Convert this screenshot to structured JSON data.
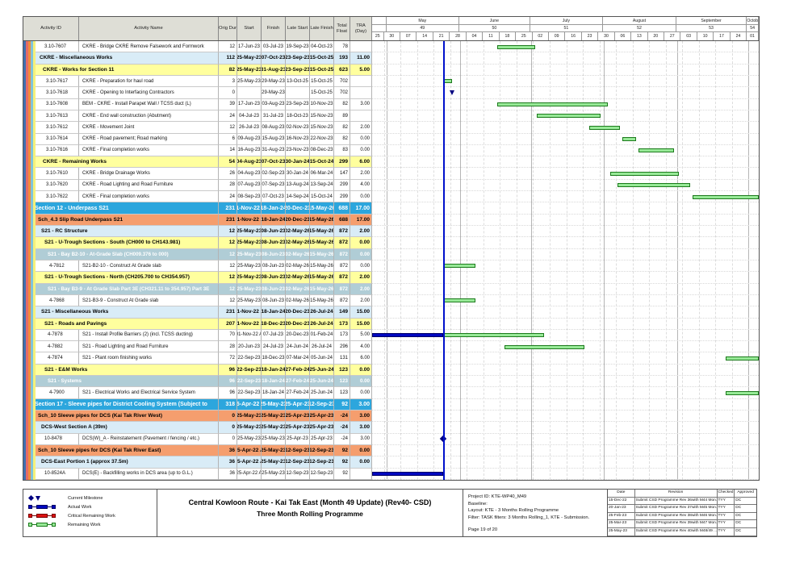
{
  "chart_data": {
    "type": "table",
    "title": "Central Kowloon Route - Kai Tak East (Month 49 Update) (Rev40- CSD) — Three Month Rolling Programme",
    "columns": [
      "Activity ID",
      "Activity Name",
      "Orig Dur",
      "Start",
      "Finish",
      "Late Start",
      "Late Finish",
      "Total Float",
      "TRA (Day)"
    ],
    "timeline": {
      "window_start": "25-Apr-23",
      "window_end": "06-Oct-23",
      "data_date": "25-May-23",
      "months": [
        {
          "l": "",
          "n": "",
          "d": 6
        },
        {
          "l": "May",
          "n": "49",
          "d": 31
        },
        {
          "l": "June",
          "n": "50",
          "d": 30
        },
        {
          "l": "July",
          "n": "51",
          "d": 31
        },
        {
          "l": "August",
          "n": "52",
          "d": 31
        },
        {
          "l": "September",
          "n": "53",
          "d": 30
        },
        {
          "l": "October",
          "n": "54",
          "d": 5
        }
      ],
      "weeks": [
        {
          "l": "25",
          "d": 5
        },
        {
          "l": "30",
          "d": 7
        },
        {
          "l": "07",
          "d": 7
        },
        {
          "l": "14",
          "d": 7
        },
        {
          "l": "21",
          "d": 7
        },
        {
          "l": "28",
          "d": 7
        },
        {
          "l": "04",
          "d": 7
        },
        {
          "l": "11",
          "d": 7
        },
        {
          "l": "18",
          "d": 7
        },
        {
          "l": "25",
          "d": 7
        },
        {
          "l": "02",
          "d": 7
        },
        {
          "l": "09",
          "d": 7
        },
        {
          "l": "16",
          "d": 7
        },
        {
          "l": "23",
          "d": 7
        },
        {
          "l": "30",
          "d": 7
        },
        {
          "l": "06",
          "d": 7
        },
        {
          "l": "13",
          "d": 7
        },
        {
          "l": "20",
          "d": 7
        },
        {
          "l": "27",
          "d": 7
        },
        {
          "l": "03",
          "d": 7
        },
        {
          "l": "10",
          "d": 7
        },
        {
          "l": "17",
          "d": 7
        },
        {
          "l": "24",
          "d": 7
        },
        {
          "l": "01",
          "d": 5
        }
      ]
    },
    "colors": {
      "section_bg": "#2ca6dd",
      "orange_bg": "#f59e6e",
      "lightblue_bg": "#d9ecf7",
      "yellow_bg": "#ffff9e",
      "teal_bg": "#b0cdd6",
      "actual_bar": "#0008c0",
      "remaining_fill": "#97e997",
      "remaining_border": "#1c7a1c",
      "critical_bar": "#dd1111",
      "data_date_line": "#0011cc",
      "band_stripes": [
        "#3e6fb0",
        "#e36a6a",
        "#f08c3c",
        "#7fc4dc",
        "#f5f07a"
      ]
    },
    "rows": [
      {
        "t": "act",
        "ind": 26,
        "id": "3.10-7607",
        "nm": "CKRE - Bridge CKRE Remove Falsework and Formwork",
        "du": "12",
        "st": "17-Jun-23",
        "fi": "03-Jul-23",
        "ls": "19-Sep-23",
        "lf": "04-Oct-23",
        "tf": "78",
        "tra": ""
      },
      {
        "t": "blu",
        "ind": 20,
        "id": "",
        "nm": "CKRE - Miscellaneous Works",
        "du": "112",
        "st": "25-May-23",
        "fi": "07-Oct-23",
        "ls": "23-Sep-23",
        "lf": "15-Oct-25",
        "tf": "193",
        "tra": "11.00"
      },
      {
        "t": "yel",
        "ind": 24,
        "id": "",
        "nm": "CKRE - Works for Section 11",
        "du": "82",
        "st": "25-May-23",
        "fi": "31-Aug-23",
        "ls": "23-Sep-23",
        "lf": "15-Oct-25",
        "tf": "623",
        "tra": "5.00"
      },
      {
        "t": "act",
        "ind": 28,
        "id": "3.10-7617",
        "nm": "CKRE - Preparation for haul road",
        "du": "3",
        "st": "25-May-23",
        "fi": "29-May-23",
        "ls": "13-Oct-25",
        "lf": "15-Oct-25",
        "tf": "702",
        "tra": ""
      },
      {
        "t": "act",
        "ind": 28,
        "id": "3.10-7618",
        "nm": "CKRE - Opening to Interfacing Contractors",
        "du": "0",
        "st": "",
        "fi": "29-May-23",
        "ls": "",
        "lf": "15-Oct-25",
        "tf": "702",
        "tra": ""
      },
      {
        "t": "act",
        "ind": 28,
        "id": "3.10-7608",
        "nm": "BEM - CKRE - Install Parapet Wall / TCSS duct (L)",
        "du": "39",
        "st": "17-Jun-23",
        "fi": "03-Aug-23",
        "ls": "23-Sep-23",
        "lf": "10-Nov-23",
        "tf": "82",
        "tra": "3.00"
      },
      {
        "t": "act",
        "ind": 28,
        "id": "3.10-7613",
        "nm": "CKRE - End wall construction (Abutment)",
        "du": "24",
        "st": "04-Jul-23",
        "fi": "31-Jul-23",
        "ls": "18-Oct-23",
        "lf": "15-Nov-23",
        "tf": "89",
        "tra": ""
      },
      {
        "t": "act",
        "ind": 28,
        "id": "3.10-7612",
        "nm": "CKRE - Movement Joint",
        "du": "12",
        "st": "26-Jul-23",
        "fi": "08-Aug-23",
        "ls": "02-Nov-23",
        "lf": "15-Nov-23",
        "tf": "82",
        "tra": "2.00"
      },
      {
        "t": "act",
        "ind": 28,
        "id": "3.10-7614",
        "nm": "CKRE - Road pavement; Road marking",
        "du": "6",
        "st": "09-Aug-23",
        "fi": "15-Aug-23",
        "ls": "16-Nov-23",
        "lf": "22-Nov-23",
        "tf": "82",
        "tra": "0.00"
      },
      {
        "t": "act",
        "ind": 28,
        "id": "3.10-7616",
        "nm": "CKRE - Final completion works",
        "du": "14",
        "st": "16-Aug-23",
        "fi": "31-Aug-23",
        "ls": "23-Nov-23",
        "lf": "08-Dec-23",
        "tf": "83",
        "tra": "0.00"
      },
      {
        "t": "yel",
        "ind": 24,
        "id": "",
        "nm": "CKRE - Remaining Works",
        "du": "54",
        "st": "04-Aug-23",
        "fi": "07-Oct-23",
        "ls": "30-Jan-24",
        "lf": "15-Oct-24",
        "tf": "299",
        "tra": "6.00"
      },
      {
        "t": "act",
        "ind": 28,
        "id": "3.10-7610",
        "nm": "CKRE - Bridge Drainage Works",
        "du": "26",
        "st": "04-Aug-23",
        "fi": "02-Sep-23",
        "ls": "30-Jan-24",
        "lf": "06-Mar-24",
        "tf": "147",
        "tra": "2.00"
      },
      {
        "t": "act",
        "ind": 28,
        "id": "3.10-7620",
        "nm": "CKRE - Road Lighting and Road Furniture",
        "du": "28",
        "st": "07-Aug-23",
        "fi": "07-Sep-23",
        "ls": "13-Aug-24",
        "lf": "13-Sep-24",
        "tf": "299",
        "tra": "4.00"
      },
      {
        "t": "act",
        "ind": 28,
        "id": "3.10-7622",
        "nm": "CKRE - Final completion works",
        "du": "24",
        "st": "08-Sep-23",
        "fi": "07-Oct-23",
        "ls": "14-Sep-24",
        "lf": "15-Oct-24",
        "tf": "299",
        "tra": "0.00"
      },
      {
        "t": "sec",
        "ind": 14,
        "id": "",
        "nm": "Section 12 - Underpass S21",
        "du": "231",
        "st": "01-Nov-22 A",
        "fi": "18-Jan-24",
        "ls": "20-Dec-23",
        "lf": "15-May-26",
        "tf": "688",
        "tra": "17.00"
      },
      {
        "t": "org",
        "ind": 18,
        "id": "",
        "nm": "Sch_4.3 Slip Road Underpass S21",
        "du": "231",
        "st": "01-Nov-22 A",
        "fi": "18-Jan-24",
        "ls": "20-Dec-23",
        "lf": "15-May-26",
        "tf": "688",
        "tra": "17.00"
      },
      {
        "t": "blu",
        "ind": 22,
        "id": "",
        "nm": "S21 - RC Structure",
        "du": "12",
        "st": "25-May-23",
        "fi": "08-Jun-23",
        "ls": "02-May-26",
        "lf": "15-May-26",
        "tf": "872",
        "tra": "2.00"
      },
      {
        "t": "yel",
        "ind": 26,
        "id": "",
        "nm": "S21 - U-Trough Sections - South (CH000 to CH143.981)",
        "du": "12",
        "st": "25-May-23",
        "fi": "08-Jun-23",
        "ls": "02-May-26",
        "lf": "15-May-26",
        "tf": "872",
        "tra": "0.00"
      },
      {
        "t": "tea",
        "ind": 30,
        "id": "",
        "nm": "S21 - Bay B2-10 - At-Grade Slab (CH009.376 to 000)",
        "du": "12",
        "st": "25-May-23",
        "fi": "08-Jun-23",
        "ls": "02-May-26",
        "lf": "15-May-26",
        "tf": "872",
        "tra": "0.00"
      },
      {
        "t": "act",
        "ind": 32,
        "id": "4-7812",
        "nm": "S21-B2-10 - Construct At Grade slab",
        "du": "12",
        "st": "25-May-23",
        "fi": "08-Jun-23",
        "ls": "02-May-26",
        "lf": "15-May-26",
        "tf": "872",
        "tra": "0.00"
      },
      {
        "t": "yel",
        "ind": 26,
        "id": "",
        "nm": "S21 - U-Trough Sections - North (CH205.700 to CH354.957)",
        "du": "12",
        "st": "25-May-23",
        "fi": "08-Jun-23",
        "ls": "02-May-26",
        "lf": "15-May-26",
        "tf": "872",
        "tra": "2.00"
      },
      {
        "t": "tea",
        "ind": 30,
        "id": "",
        "nm": "S21 - Bay B3-9 - At Grade Slab Part 3E (CH321.11 to 354.957) Part 3E",
        "du": "12",
        "st": "25-May-23",
        "fi": "08-Jun-23",
        "ls": "02-May-26",
        "lf": "15-May-26",
        "tf": "872",
        "tra": "2.00"
      },
      {
        "t": "act",
        "ind": 32,
        "id": "4-7868",
        "nm": "S21-B3-9 - Construct At Grade slab",
        "du": "12",
        "st": "25-May-23",
        "fi": "08-Jun-23",
        "ls": "02-May-26",
        "lf": "15-May-26",
        "tf": "872",
        "tra": "2.00"
      },
      {
        "t": "blu",
        "ind": 22,
        "id": "",
        "nm": "S21 - Miscellaneous Works",
        "du": "231",
        "st": "01-Nov-22 A",
        "fi": "18-Jan-24",
        "ls": "20-Dec-23",
        "lf": "26-Jul-24",
        "tf": "149",
        "tra": "15.00"
      },
      {
        "t": "yel",
        "ind": 26,
        "id": "",
        "nm": "S21 - Roads and Pavings",
        "du": "207",
        "st": "01-Nov-22 A",
        "fi": "18-Dec-23",
        "ls": "20-Dec-23",
        "lf": "26-Jul-24",
        "tf": "173",
        "tra": "15.00"
      },
      {
        "t": "act",
        "ind": 30,
        "id": "4-7878",
        "nm": "S21 - Install Profile Barriers (2) (incl. TCSS ducting)",
        "du": "70",
        "st": "01-Nov-22 A",
        "fi": "07-Jul-23",
        "ls": "20-Dec-23",
        "lf": "01-Feb-24",
        "tf": "173",
        "tra": "5.00"
      },
      {
        "t": "act",
        "ind": 30,
        "id": "4-7882",
        "nm": "S21 - Road Lighting and Road Furniture",
        "du": "28",
        "st": "20-Jun-23",
        "fi": "24-Jul-23",
        "ls": "24-Jun-24",
        "lf": "26-Jul-24",
        "tf": "296",
        "tra": "4.00"
      },
      {
        "t": "act",
        "ind": 30,
        "id": "4-7874",
        "nm": "S21 - Plant room finishing works",
        "du": "72",
        "st": "22-Sep-23",
        "fi": "18-Dec-23",
        "ls": "07-Mar-24",
        "lf": "05-Jun-24",
        "tf": "131",
        "tra": "6.00"
      },
      {
        "t": "yel",
        "ind": 26,
        "id": "",
        "nm": "S21 - E&M Works",
        "du": "96",
        "st": "22-Sep-23",
        "fi": "18-Jan-24",
        "ls": "27-Feb-24",
        "lf": "25-Jun-24",
        "tf": "123",
        "tra": "0.00"
      },
      {
        "t": "tea",
        "ind": 30,
        "id": "",
        "nm": "S21 - Systems",
        "du": "96",
        "st": "22-Sep-23",
        "fi": "18-Jan-24",
        "ls": "27-Feb-24",
        "lf": "25-Jun-24",
        "tf": "123",
        "tra": "0.00"
      },
      {
        "t": "act",
        "ind": 32,
        "id": "4-7900",
        "nm": "S21 - Electrical Works and  Electrical Service System",
        "du": "96",
        "st": "22-Sep-23",
        "fi": "18-Jan-24",
        "ls": "27-Feb-24",
        "lf": "25-Jun-24",
        "tf": "123",
        "tra": "0.00"
      },
      {
        "t": "sec",
        "ind": 14,
        "id": "",
        "nm": "Section 17 - Sleeve pipes for District Cooling System (Subject to",
        "du": "318",
        "st": "25-Apr-22 A",
        "fi": "25-May-23",
        "ls": "25-Apr-23",
        "lf": "12-Sep-23",
        "tf": "92",
        "tra": "3.00"
      },
      {
        "t": "org",
        "ind": 18,
        "id": "",
        "nm": "Sch_10 Sleeve pipes for DCS (Kai Tak River West)",
        "du": "0",
        "st": "25-May-23",
        "fi": "25-May-23",
        "ls": "25-Apr-23",
        "lf": "25-Apr-23",
        "tf": "-24",
        "tra": "3.00"
      },
      {
        "t": "blu",
        "ind": 22,
        "id": "",
        "nm": "DCS-West Section A (39m)",
        "du": "0",
        "st": "25-May-23",
        "fi": "25-May-23",
        "ls": "25-Apr-23",
        "lf": "25-Apr-23",
        "tf": "-24",
        "tra": "3.00"
      },
      {
        "t": "act",
        "ind": 26,
        "id": "10-8478",
        "nm": "DCS(W)_A - Reinstatement (Pavement / fencing / etc.)",
        "du": "0",
        "st": "25-May-23",
        "fi": "25-May-23",
        "ls": "25-Apr-23",
        "lf": "25-Apr-23",
        "tf": "-24",
        "tra": "3.00"
      },
      {
        "t": "org",
        "ind": 18,
        "id": "",
        "nm": "Sch_10 Sleeve pipes for DCS (Kai Tak River East)",
        "du": "36",
        "st": "25-Apr-22 A",
        "fi": "25-May-23",
        "ls": "12-Sep-23",
        "lf": "12-Sep-23",
        "tf": "92",
        "tra": "0.00"
      },
      {
        "t": "blu",
        "ind": 22,
        "id": "",
        "nm": "DCS-East Portion 1 (approx 37.5m)",
        "du": "36",
        "st": "25-Apr-22 A",
        "fi": "25-May-23",
        "ls": "12-Sep-23",
        "lf": "12-Sep-23",
        "tf": "92",
        "tra": "0.00"
      },
      {
        "t": "act",
        "ind": 26,
        "id": "10-8524A",
        "nm": "DCS(E) - Backfilling works in DCS area  (up to G.L.)",
        "du": "36",
        "st": "25-Apr-22 A",
        "fi": "25-May-23",
        "ls": "12-Sep-23",
        "lf": "12-Sep-23",
        "tf": "92",
        "tra": ""
      }
    ]
  },
  "legend": [
    {
      "label": "Current Milestone",
      "kind": "milestone"
    },
    {
      "label": "Actual Work",
      "kind": "bar",
      "fill": "#0008c0",
      "border": "#000066"
    },
    {
      "label": "Critical Remaining Work",
      "kind": "bar",
      "fill": "#dd1111",
      "border": "#7a0000"
    },
    {
      "label": "Remaining Work",
      "kind": "bar",
      "fill": "#97e997",
      "border": "#1c7a1c"
    }
  ],
  "footer": {
    "title": {
      "l1": "Central Kowloon Route - Kai Tak East (Month 49 Update) (Rev40- CSD)",
      "l2": "Three Month Rolling Programme"
    },
    "info_lines": [
      "Project ID: KTE-WP40_M49",
      "Baseline:",
      "Layout: KTE - 3 Months Rolling Programme",
      "Filter: TASK filters: 3 Months Rolling_1, KTE - Submission.",
      "Page 19 of 20"
    ],
    "revision": {
      "columns": [
        "Date",
        "Revision",
        "Checked",
        "Approved"
      ],
      "rows": [
        [
          "15-Dec-22",
          "Submit CSD Programme Rev 36with M44 Mon...",
          "TYY",
          "DC"
        ],
        [
          "20-Jan-23",
          "Submit CSD Programme Rev 37with M45 Mon...",
          "TYY",
          "DC"
        ],
        [
          "25-Feb-23",
          "Submit CSD Programme Rev 38with M46 Mon...",
          "TYY",
          "DC"
        ],
        [
          "25-Mar-23",
          "Submit CSD Programme Rev 39with M47 Mon...",
          "TYY",
          "DC"
        ],
        [
          "25-May-23",
          "Submit CSD Programme Rev 40with M48/49 ...",
          "TYY",
          "DC"
        ]
      ]
    }
  }
}
